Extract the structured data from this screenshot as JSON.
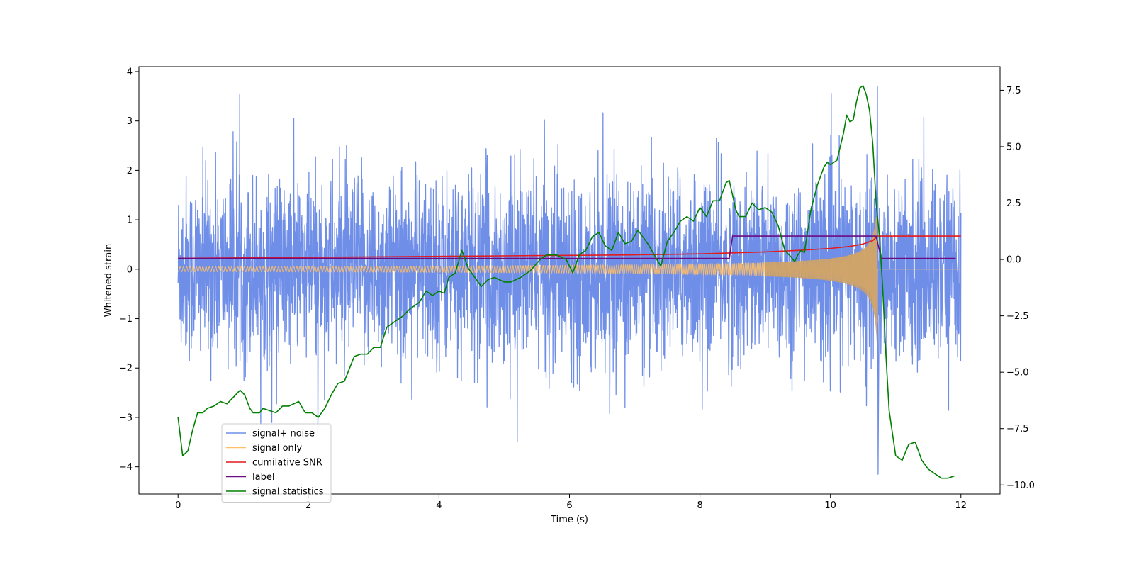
{
  "chart_data": {
    "type": "line",
    "title": "",
    "xlabel": "Time (s)",
    "ylabel": "Whitened strain",
    "y2label": "",
    "xlim": [
      -0.6,
      12.6
    ],
    "ylim": [
      -4.55,
      4.1
    ],
    "y2lim": [
      -10.4,
      8.55
    ],
    "xticks": [
      0,
      2,
      4,
      6,
      8,
      10,
      12
    ],
    "xtick_labels": [
      "0",
      "2",
      "4",
      "6",
      "8",
      "10",
      "12"
    ],
    "yticks": [
      -4,
      -3,
      -2,
      -1,
      0,
      1,
      2,
      3,
      4
    ],
    "ytick_labels": [
      "−4",
      "−3",
      "−2",
      "−1",
      "0",
      "1",
      "2",
      "3",
      "4"
    ],
    "y2ticks": [
      -10,
      -7.5,
      -5,
      -2.5,
      0,
      2.5,
      5,
      7.5
    ],
    "y2tick_labels": [
      "−10.0",
      "−7.5",
      "−5.0",
      "−2.5",
      "0.0",
      "2.5",
      "5.0",
      "7.5"
    ],
    "grid": false,
    "legend_position": "lower-left",
    "series": [
      {
        "name": "signal+ noise",
        "axis": "left",
        "color": "#6f8ee8",
        "kind": "noise-band",
        "x_range": [
          0,
          12
        ],
        "typical_amplitude": 1.5,
        "peak_max": 3.7,
        "peak_min": -4.15
      },
      {
        "name": "signal only",
        "axis": "left",
        "color": "#ffbf66",
        "kind": "chirp",
        "x_range": [
          0,
          12
        ],
        "merger_time": 10.72,
        "early_amplitude": 0.05,
        "peak_amplitude_pos": 1.05,
        "peak_amplitude_neg": -2.3
      },
      {
        "name": "cumilative SNR",
        "axis": "left",
        "color": "#e41a1c",
        "x": [
          0,
          1,
          2,
          3,
          4,
          5,
          6,
          7,
          8,
          8.5,
          9,
          9.5,
          10,
          10.3,
          10.5,
          10.65,
          10.72,
          11,
          12
        ],
        "y": [
          0.22,
          0.23,
          0.24,
          0.25,
          0.26,
          0.27,
          0.28,
          0.29,
          0.31,
          0.33,
          0.35,
          0.38,
          0.42,
          0.46,
          0.51,
          0.58,
          0.67,
          0.67,
          0.67
        ]
      },
      {
        "name": "label",
        "axis": "left",
        "color": "#6a0d83",
        "x": [
          0,
          8.45,
          8.5,
          10.7,
          10.78,
          11.92
        ],
        "y": [
          0.22,
          0.22,
          0.67,
          0.67,
          0.22,
          0.22
        ]
      },
      {
        "name": "signal statistics",
        "axis": "right",
        "color": "#008000",
        "x": [
          0,
          0.07,
          0.15,
          0.22,
          0.3,
          0.38,
          0.45,
          0.55,
          0.65,
          0.75,
          0.85,
          0.95,
          1.02,
          1.1,
          1.15,
          1.25,
          1.3,
          1.4,
          1.5,
          1.6,
          1.7,
          1.85,
          1.95,
          2.05,
          2.15,
          2.25,
          2.35,
          2.45,
          2.55,
          2.7,
          2.8,
          2.9,
          3.0,
          3.1,
          3.2,
          3.3,
          3.45,
          3.55,
          3.7,
          3.8,
          3.9,
          4.0,
          4.08,
          4.15,
          4.25,
          4.35,
          4.45,
          4.55,
          4.65,
          4.75,
          4.85,
          5.0,
          5.1,
          5.25,
          5.4,
          5.55,
          5.65,
          5.8,
          5.95,
          6.05,
          6.15,
          6.25,
          6.35,
          6.45,
          6.55,
          6.65,
          6.75,
          6.85,
          6.95,
          7.05,
          7.2,
          7.3,
          7.4,
          7.5,
          7.6,
          7.7,
          7.8,
          7.9,
          8.0,
          8.1,
          8.2,
          8.3,
          8.4,
          8.45,
          8.55,
          8.6,
          8.7,
          8.8,
          8.9,
          9.0,
          9.1,
          9.2,
          9.3,
          9.4,
          9.45,
          9.5,
          9.55,
          9.6,
          9.7,
          9.8,
          9.9,
          9.95,
          10.0,
          10.1,
          10.2,
          10.25,
          10.3,
          10.35,
          10.4,
          10.45,
          10.5,
          10.55,
          10.6,
          10.65,
          10.7,
          10.75,
          10.8,
          10.85,
          10.9,
          11.0,
          11.1,
          11.2,
          11.3,
          11.4,
          11.5,
          11.6,
          11.7,
          11.8,
          11.9
        ],
        "y": [
          -7.0,
          -8.7,
          -8.5,
          -7.6,
          -6.8,
          -6.8,
          -6.6,
          -6.5,
          -6.3,
          -6.4,
          -6.1,
          -5.8,
          -6.0,
          -6.6,
          -6.8,
          -6.8,
          -6.6,
          -6.7,
          -6.8,
          -6.5,
          -6.5,
          -6.3,
          -6.8,
          -6.8,
          -7.0,
          -6.6,
          -6.0,
          -5.5,
          -5.4,
          -4.3,
          -4.2,
          -4.2,
          -3.9,
          -3.9,
          -3.0,
          -2.8,
          -2.5,
          -2.2,
          -1.9,
          -1.4,
          -1.6,
          -1.4,
          -1.5,
          -0.8,
          -0.6,
          0.4,
          -0.4,
          -0.8,
          -1.2,
          -0.9,
          -0.8,
          -1.0,
          -1.0,
          -0.8,
          -0.5,
          0.0,
          0.2,
          0.2,
          0.0,
          -0.6,
          0.2,
          0.4,
          1.0,
          1.2,
          0.6,
          0.4,
          1.2,
          0.7,
          0.8,
          1.3,
          0.7,
          0.2,
          -0.3,
          0.8,
          1.2,
          1.7,
          1.9,
          1.7,
          2.3,
          1.9,
          2.6,
          2.6,
          3.4,
          3.5,
          2.2,
          1.9,
          1.9,
          2.5,
          2.2,
          2.3,
          2.1,
          1.5,
          0.4,
          0.1,
          -0.1,
          0.2,
          0.4,
          0.3,
          2.2,
          3.3,
          4.1,
          4.3,
          4.2,
          4.4,
          5.6,
          6.4,
          6.1,
          6.2,
          7.0,
          7.6,
          7.7,
          7.3,
          6.6,
          5.1,
          2.5,
          1.1,
          -1.2,
          -4.2,
          -6.7,
          -8.7,
          -8.9,
          -8.2,
          -8.1,
          -8.9,
          -9.3,
          -9.5,
          -9.7,
          -9.7,
          -9.6
        ]
      }
    ]
  }
}
